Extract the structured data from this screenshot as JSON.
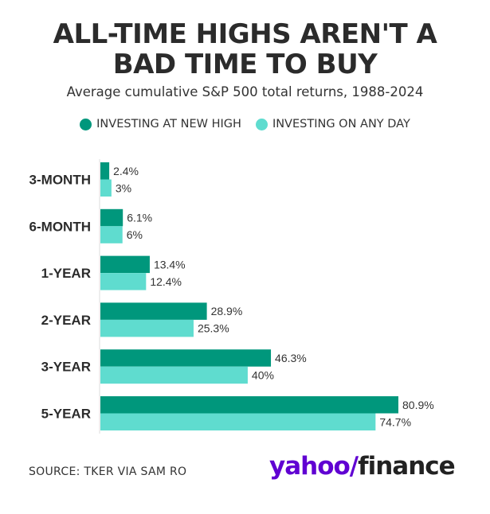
{
  "title_line1": "ALL-TIME HIGHS AREN'T A",
  "title_line2": "BAD TIME TO BUY",
  "subtitle": "Average cumulative S&P 500 total returns, 1988-2024",
  "legend": [
    {
      "label": "INVESTING AT NEW HIGH",
      "color": "#00977c"
    },
    {
      "label": "INVESTING ON ANY DAY",
      "color": "#5fdccf"
    }
  ],
  "source": "SOURCE: TKER VIA SAM RO",
  "logo": {
    "yahoo": "yahoo",
    "slash": "/",
    "finance": "finance"
  },
  "chart_data": {
    "type": "bar",
    "orientation": "horizontal",
    "title": "ALL-TIME HIGHS AREN'T A BAD TIME TO BUY",
    "subtitle": "Average cumulative S&P 500 total returns, 1988-2024",
    "categories": [
      "3-MONTH",
      "6-MONTH",
      "1-YEAR",
      "2-YEAR",
      "3-YEAR",
      "5-YEAR"
    ],
    "series": [
      {
        "name": "INVESTING AT NEW HIGH",
        "color": "#00977c",
        "values": [
          2.4,
          6.1,
          13.4,
          28.9,
          46.3,
          80.9
        ],
        "labels": [
          "2.4%",
          "6.1%",
          "13.4%",
          "28.9%",
          "46.3%",
          "80.9%"
        ]
      },
      {
        "name": "INVESTING ON ANY DAY",
        "color": "#5fdccf",
        "values": [
          3,
          6,
          12.4,
          25.3,
          40,
          74.7
        ],
        "labels": [
          "3%",
          "6%",
          "12.4%",
          "25.3%",
          "40%",
          "74.7%"
        ]
      }
    ],
    "xlim": [
      0,
      80.9
    ],
    "grid": false,
    "legend_position": "top"
  }
}
